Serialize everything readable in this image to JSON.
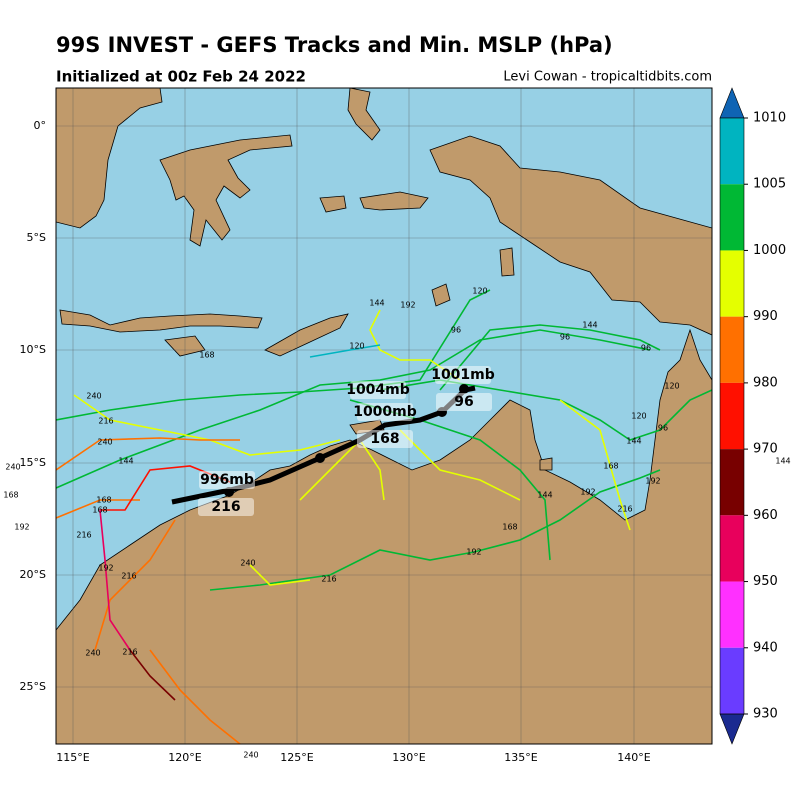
{
  "header": {
    "title": "99S INVEST - GEFS Tracks and Min. MSLP (hPa)",
    "subtitle": "Initialized at 00z Feb 24 2022",
    "credit": "Levi Cowan - tropicaltidbits.com"
  },
  "map": {
    "lat_labels": [
      "0°",
      "5°S",
      "10°S",
      "15°S",
      "20°S",
      "25°S"
    ],
    "lon_labels": [
      "115°E",
      "120°E",
      "125°E",
      "130°E",
      "135°E",
      "140°E"
    ]
  },
  "colorbar": {
    "ticks": [
      1010,
      1005,
      1000,
      990,
      980,
      970,
      960,
      950,
      940,
      930
    ],
    "colors": [
      "#0f64b4",
      "#00b4c0",
      "#00b834",
      "#e4ff00",
      "#ff7000",
      "#ff1000",
      "#780000",
      "#e8005c",
      "#ff30ff",
      "#6a3cff",
      "#1a2a90"
    ]
  },
  "annotations": [
    {
      "text": "996mb"
    },
    {
      "text": "216"
    },
    {
      "text": "1000mb"
    },
    {
      "text": "168"
    },
    {
      "text": "1004mb"
    },
    {
      "text": "1001mb"
    },
    {
      "text": "96"
    }
  ],
  "hour_labels": [
    "240",
    "216",
    "240",
    "144",
    "168",
    "168",
    "216",
    "192",
    "216",
    "240",
    "216",
    "240",
    "216",
    "192",
    "168",
    "144",
    "192",
    "216",
    "192",
    "168",
    "144",
    "120",
    "96",
    "120",
    "96",
    "144",
    "96",
    "120",
    "192",
    "144",
    "96",
    "168",
    "120",
    "240",
    "168",
    "192",
    "144",
    "240"
  ]
}
